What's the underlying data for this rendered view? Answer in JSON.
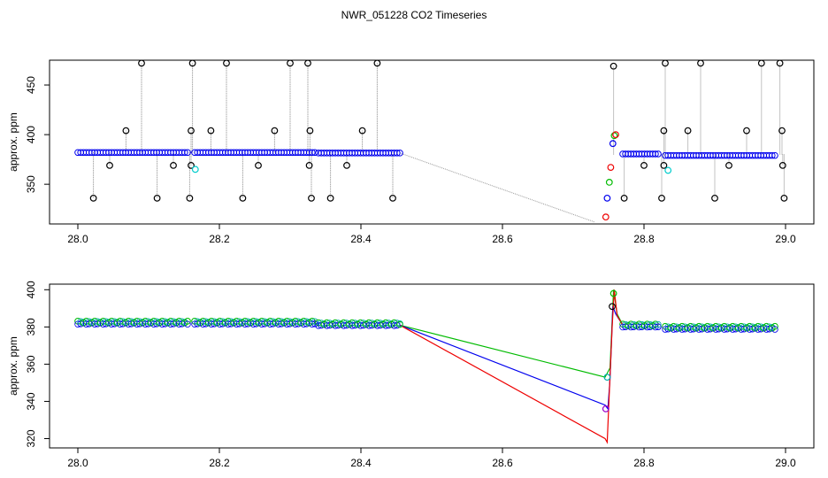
{
  "figure": {
    "title": "NWR_051228  CO2 Timeseries"
  },
  "chart_data": [
    {
      "type": "scatter",
      "ylabel": "approx. ppm",
      "xlim": [
        27.96,
        29.04
      ],
      "ylim": [
        310,
        475
      ],
      "xticks": [
        "28.0",
        "28.2",
        "28.4",
        "28.6",
        "28.8",
        "29.0"
      ],
      "yticks": [
        "350",
        "400",
        "450"
      ],
      "grid": false,
      "segments": [
        {
          "x0": 28.0,
          "x1": 28.155,
          "y": 382
        },
        {
          "x0": 28.165,
          "x1": 28.335,
          "y": 382
        },
        {
          "x0": 28.34,
          "x1": 28.455,
          "y": 381.5
        },
        {
          "x0": 28.77,
          "x1": 28.82,
          "y": 380.5
        },
        {
          "x0": 28.83,
          "x1": 28.985,
          "y": 379
        }
      ],
      "spikes_high": [
        [
          28.09,
          472
        ],
        [
          28.162,
          472
        ],
        [
          28.21,
          472
        ],
        [
          28.3,
          472
        ],
        [
          28.325,
          472
        ],
        [
          28.423,
          472
        ],
        [
          28.757,
          469
        ],
        [
          28.83,
          472
        ],
        [
          28.88,
          472
        ],
        [
          28.966,
          472
        ],
        [
          28.992,
          472
        ]
      ],
      "spikes_mid": [
        [
          28.068,
          404
        ],
        [
          28.16,
          404
        ],
        [
          28.188,
          404
        ],
        [
          28.278,
          404
        ],
        [
          28.328,
          404
        ],
        [
          28.402,
          404
        ],
        [
          28.828,
          404
        ],
        [
          28.862,
          404
        ],
        [
          28.945,
          404
        ],
        [
          28.995,
          404
        ]
      ],
      "spikes_low": [
        [
          28.022,
          336
        ],
        [
          28.112,
          336
        ],
        [
          28.158,
          336
        ],
        [
          28.233,
          336
        ],
        [
          28.33,
          336
        ],
        [
          28.357,
          336
        ],
        [
          28.445,
          336
        ],
        [
          28.772,
          336
        ],
        [
          28.825,
          336
        ],
        [
          28.9,
          336
        ],
        [
          28.998,
          336
        ]
      ],
      "spikes_minor": [
        [
          28.045,
          369
        ],
        [
          28.135,
          369
        ],
        [
          28.16,
          369
        ],
        [
          28.255,
          369
        ],
        [
          28.327,
          369
        ],
        [
          28.38,
          369
        ],
        [
          28.8,
          369
        ],
        [
          28.828,
          369
        ],
        [
          28.92,
          369
        ],
        [
          28.996,
          369
        ]
      ],
      "cyan_points": [
        [
          28.166,
          365
        ],
        [
          28.834,
          364
        ]
      ],
      "transition_points": [
        {
          "x": 28.746,
          "y": 317,
          "color": "#ee0000"
        },
        {
          "x": 28.748,
          "y": 336,
          "color": "#0000ee"
        },
        {
          "x": 28.751,
          "y": 352,
          "color": "#00bb00"
        },
        {
          "x": 28.753,
          "y": 367,
          "color": "#ee0000"
        },
        {
          "x": 28.756,
          "y": 391,
          "color": "#0000ee"
        },
        {
          "x": 28.758,
          "y": 399,
          "color": "#00bb00"
        },
        {
          "x": 28.76,
          "y": 400,
          "color": "#ee0000"
        }
      ],
      "gap_line": {
        "x0": 28.455,
        "y0": 381.5,
        "x1": 28.73,
        "y1": 312
      }
    },
    {
      "type": "line",
      "ylabel": "approx. ppm",
      "xlim": [
        27.96,
        29.04
      ],
      "ylim": [
        315,
        403
      ],
      "xticks": [
        "28.0",
        "28.2",
        "28.4",
        "28.6",
        "28.8",
        "29.0"
      ],
      "yticks": [
        "320",
        "340",
        "360",
        "380",
        "400"
      ],
      "grid": false,
      "segments": [
        {
          "x0": 28.0,
          "x1": 28.155,
          "y": 382.3
        },
        {
          "x0": 28.165,
          "x1": 28.335,
          "y": 382.3
        },
        {
          "x0": 28.34,
          "x1": 28.455,
          "y": 381.5
        },
        {
          "x0": 28.77,
          "x1": 28.82,
          "y": 380.7
        },
        {
          "x0": 28.83,
          "x1": 28.985,
          "y": 379.5
        }
      ],
      "series": [
        {
          "color": "#00bb00",
          "points": [
            [
              28.455,
              381
            ],
            [
              28.745,
              353
            ],
            [
              28.752,
              358
            ],
            [
              28.757,
              400
            ],
            [
              28.762,
              387
            ],
            [
              28.77,
              381
            ]
          ]
        },
        {
          "color": "#0000ee",
          "points": [
            [
              28.455,
              381
            ],
            [
              28.745,
              338
            ],
            [
              28.749,
              336
            ],
            [
              28.752,
              352
            ],
            [
              28.756,
              391
            ],
            [
              28.76,
              387
            ],
            [
              28.77,
              381
            ]
          ]
        },
        {
          "color": "#ee0000",
          "points": [
            [
              28.455,
              381
            ],
            [
              28.745,
              320
            ],
            [
              28.748,
              318
            ],
            [
              28.75,
              336
            ],
            [
              28.755,
              380
            ],
            [
              28.758,
              400
            ],
            [
              28.762,
              386
            ],
            [
              28.77,
              381
            ]
          ]
        }
      ],
      "transition_markers": [
        {
          "x": 28.746,
          "y": 336,
          "color": "#9900cc"
        },
        {
          "x": 28.748,
          "y": 353,
          "color": "#00aaaa"
        },
        {
          "x": 28.755,
          "y": 391,
          "color": "#000000"
        },
        {
          "x": 28.757,
          "y": 398,
          "color": "#00bb00"
        }
      ]
    }
  ]
}
